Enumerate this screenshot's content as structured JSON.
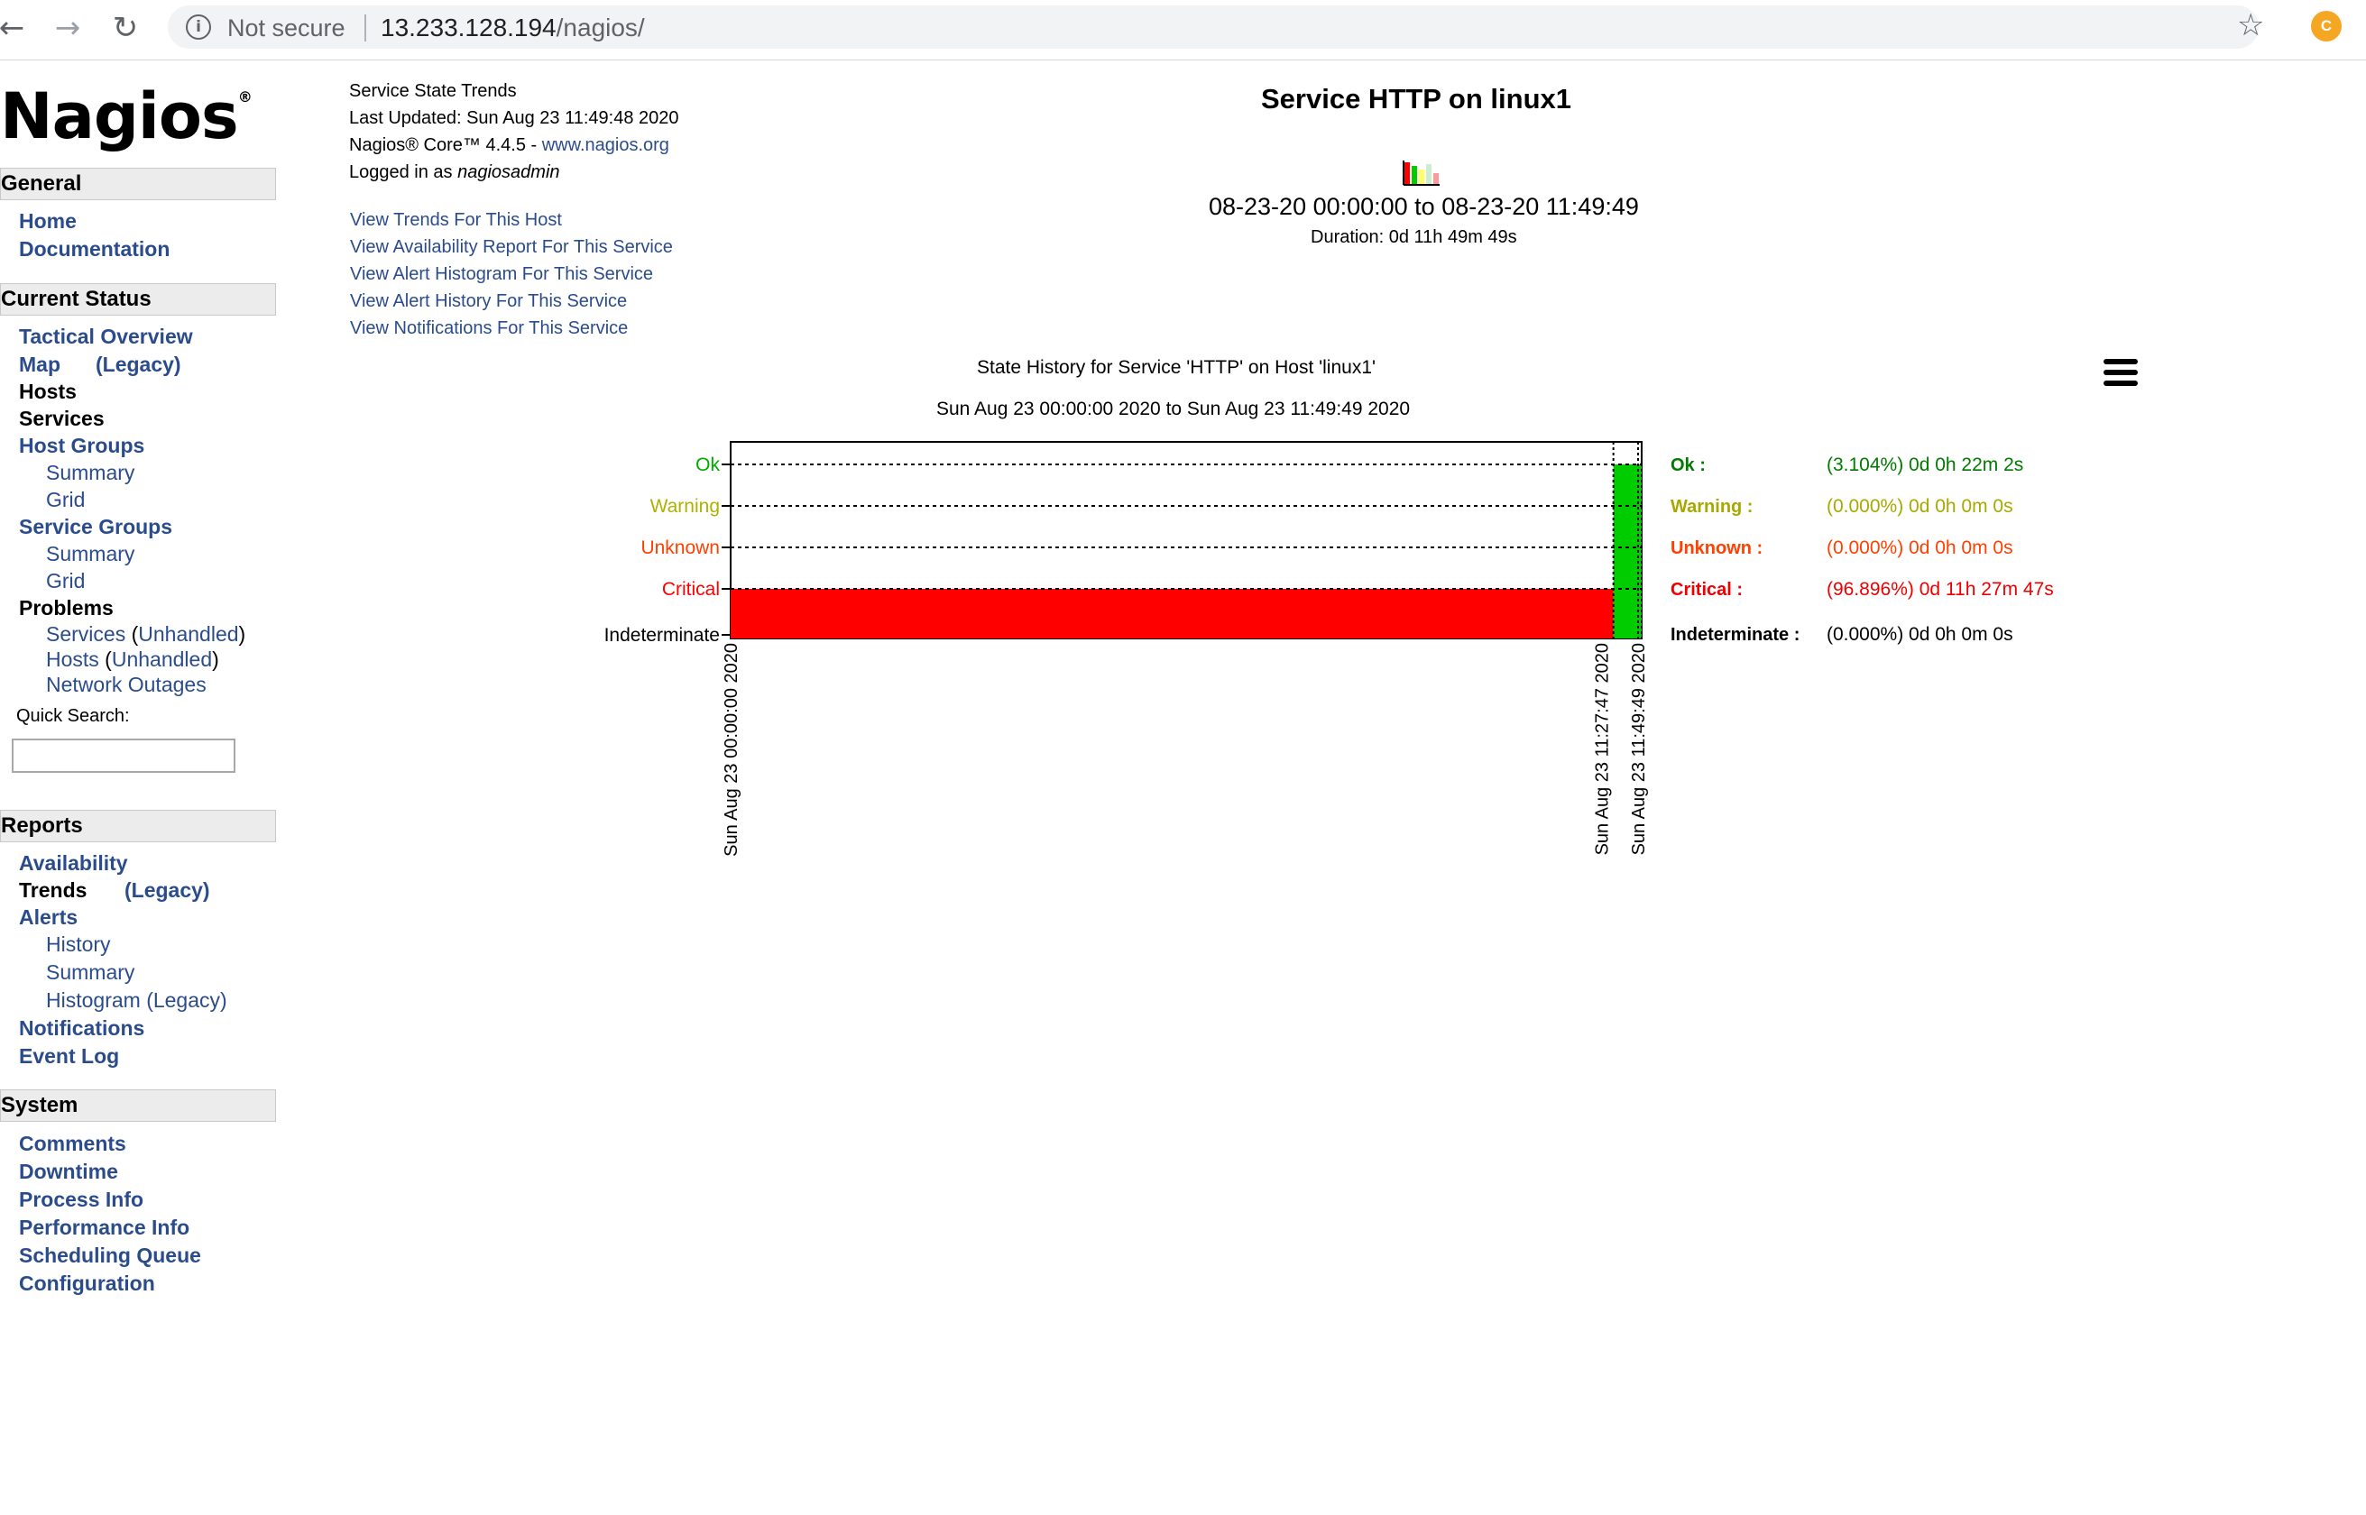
{
  "browser": {
    "secure_label": "Not secure",
    "url_host": "13.233.128.194",
    "url_path": "/nagios/",
    "profile_initial": "C"
  },
  "sidebar": {
    "logo": "Nagios",
    "logo_mark": "®",
    "general": {
      "heading": "General",
      "items": [
        "Home",
        "Documentation"
      ]
    },
    "current_status": {
      "heading": "Current Status",
      "tactical": "Tactical Overview",
      "map": "Map",
      "map_legacy": "(Legacy)",
      "hosts": "Hosts",
      "services": "Services",
      "host_groups": "Host Groups",
      "host_groups_summary": "Summary",
      "host_groups_grid": "Grid",
      "service_groups": "Service Groups",
      "service_groups_summary": "Summary",
      "service_groups_grid": "Grid",
      "problems": "Problems",
      "problems_services": "Services",
      "problems_services_unhandled": "Unhandled",
      "problems_hosts": "Hosts",
      "problems_hosts_unhandled": "Unhandled",
      "network_outages": "Network Outages",
      "quick_search_label": "Quick Search:"
    },
    "reports": {
      "heading": "Reports",
      "availability": "Availability",
      "trends": "Trends",
      "trends_legacy": "(Legacy)",
      "alerts": "Alerts",
      "alerts_history": "History",
      "alerts_summary": "Summary",
      "alerts_histogram": "Histogram (Legacy)",
      "notifications": "Notifications",
      "event_log": "Event Log"
    },
    "system": {
      "heading": "System",
      "items": [
        "Comments",
        "Downtime",
        "Process Info",
        "Performance Info",
        "Scheduling Queue",
        "Configuration"
      ]
    }
  },
  "header": {
    "report_name": "Service State Trends",
    "last_updated": "Last Updated: Sun Aug 23 11:49:48 2020",
    "core_version": "Nagios® Core™ 4.4.5 - ",
    "core_link": "www.nagios.org",
    "logged_in_prefix": "Logged in as ",
    "logged_in_user": "nagiosadmin",
    "links": [
      "View Trends For This Host",
      "View Availability Report For This Service",
      "View Alert Histogram For This Service",
      "View Alert History For This Service",
      "View Notifications For This Service"
    ]
  },
  "summary": {
    "title": "Service HTTP on linux1",
    "range": "08-23-20 00:00:00 to 08-23-20 11:49:49",
    "duration": "Duration: 0d 11h 49m 49s"
  },
  "chart_data": {
    "type": "state-timeline",
    "title": "State History for Service 'HTTP' on Host 'linux1'",
    "subtitle": "Sun Aug 23 00:00:00 2020 to Sun Aug 23 11:49:49 2020",
    "states": [
      "Ok",
      "Warning",
      "Unknown",
      "Critical",
      "Indeterminate"
    ],
    "state_colors": {
      "Ok": "#00aa00",
      "Warning": "#b0b000",
      "Unknown": "#ff4000",
      "Critical": "#ff0000",
      "Indeterminate": "#000000"
    },
    "x_ticks": [
      "Sun Aug 23 00:00:00 2020",
      "Sun Aug 23 11:27:47 2020",
      "Sun Aug 23 11:49:49 2020"
    ],
    "segments": [
      {
        "start": "Sun Aug 23 00:00:00 2020",
        "end": "Sun Aug 23 11:27:47 2020",
        "state": "Critical",
        "color": "#ff0000"
      },
      {
        "start": "Sun Aug 23 11:27:47 2020",
        "end": "Sun Aug 23 11:49:49 2020",
        "state": "Ok",
        "color": "#00cc00"
      }
    ],
    "legend": [
      {
        "label": "Ok :",
        "value": "(3.104%) 0d 0h 22m 2s",
        "color": "#007a00"
      },
      {
        "label": "Warning :",
        "value": "(0.000%) 0d 0h 0m 0s",
        "color": "#a8a800"
      },
      {
        "label": "Unknown :",
        "value": "(0.000%) 0d 0h 0m 0s",
        "color": "#ff4000"
      },
      {
        "label": "Critical :",
        "value": "(96.896%) 0d 11h 27m 47s",
        "color": "#ee0000"
      },
      {
        "label": "Indeterminate :",
        "value": "(0.000%) 0d 0h 0m 0s",
        "color": "#000000"
      }
    ]
  }
}
